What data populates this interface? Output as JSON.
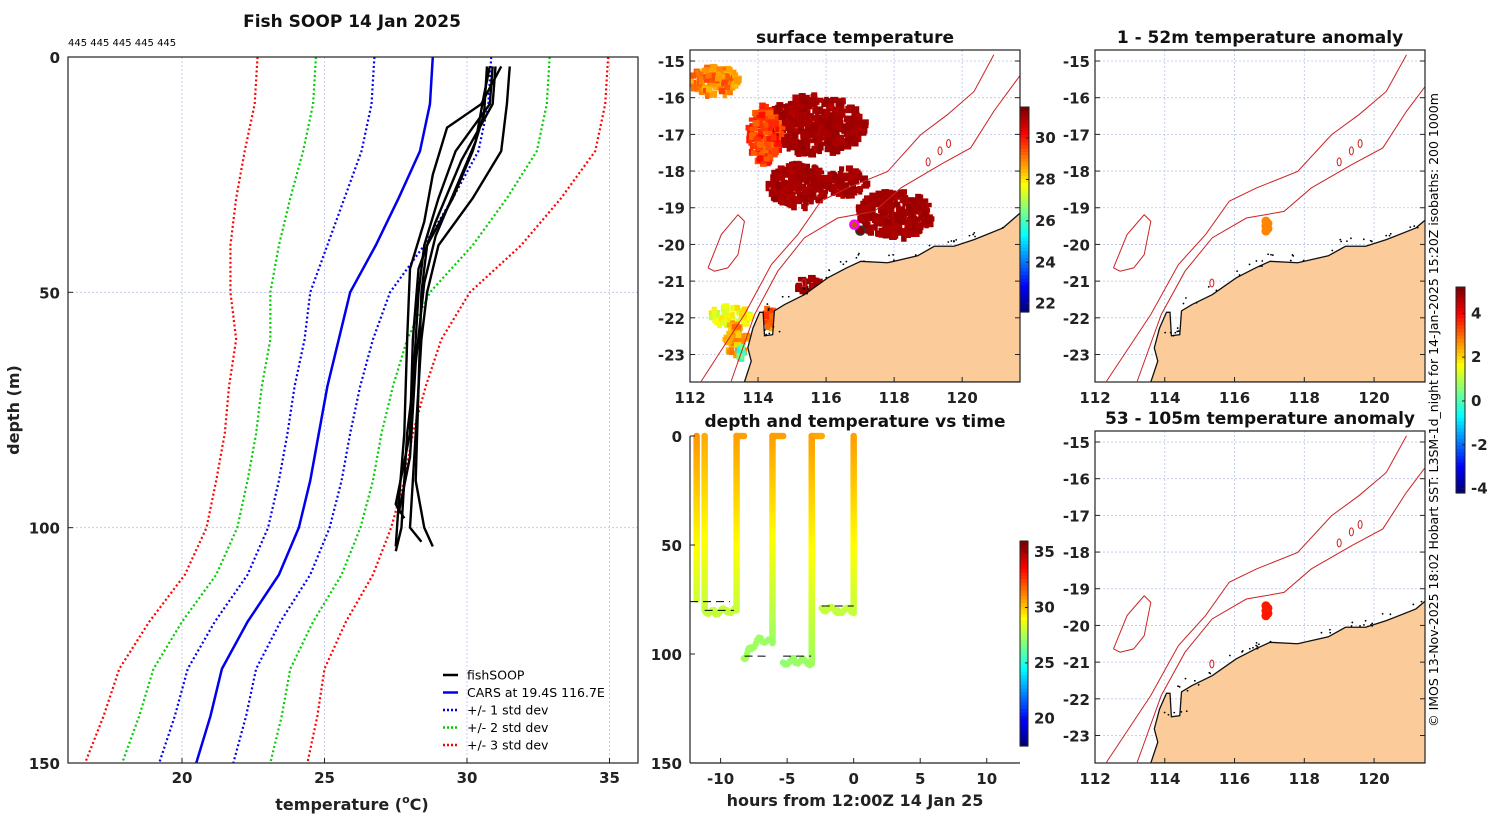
{
  "figure_title": "Fish SOOP 14 Jan 2025",
  "profile_counts": "445 445 445 445 445",
  "credit": "© IMOS 13-Nov-2025 18:02 Hobart SST: L3SM-1d_night for 14-Jan-2025 15:20Z isobaths: 200  1000m",
  "colors": {
    "land": "#fbcb9a",
    "grid": "#b8c4e8",
    "isobath": "#cc2222",
    "fish": "#000000",
    "cars": "#0000ee",
    "std1": "#0000ee",
    "std2": "#00cc00",
    "std3": "#ff0000",
    "marker": "#ff00ff"
  },
  "chart_data": [
    {
      "id": "profile",
      "type": "line",
      "title": "Fish SOOP 14 Jan 2025",
      "xlabel": "temperature (",
      "xlabel_sup": "o",
      "xlabel_unit": "C)",
      "ylabel": "depth (m)",
      "xlim": [
        16,
        36
      ],
      "ylim": [
        0,
        150
      ],
      "xticks": [
        "20",
        "25",
        "30",
        "35"
      ],
      "yticks": [
        "0",
        "50",
        "100",
        "150"
      ],
      "grid": true,
      "legend_position": "bottom-right",
      "legend": [
        "fishSOOP",
        "CARS at 19.4S 116.7E",
        "+/- 1 std dev",
        "+/- 2 std dev",
        "+/- 3 std dev"
      ],
      "cars": {
        "depth": [
          0,
          10,
          20,
          30,
          40,
          50,
          60,
          70,
          80,
          90,
          100,
          110,
          120,
          130,
          140,
          150
        ],
        "mean": [
          28.8,
          28.7,
          28.35,
          27.6,
          26.8,
          25.9,
          25.5,
          25.1,
          24.8,
          24.5,
          24.1,
          23.4,
          22.3,
          21.4,
          21.0,
          20.5
        ],
        "std": [
          2.05,
          2.05,
          2.05,
          1.9,
          1.7,
          1.4,
          1.2,
          1.15,
          1.1,
          1.1,
          1.08,
          1.1,
          1.15,
          1.2,
          1.25,
          1.3
        ]
      },
      "fish_profiles": [
        [
          [
            2,
            31.5
          ],
          [
            10,
            31.4
          ],
          [
            20,
            31.2
          ],
          [
            30,
            30.2
          ],
          [
            40,
            29.0
          ],
          [
            50,
            28.6
          ],
          [
            60,
            28.4
          ],
          [
            70,
            28.3
          ],
          [
            80,
            28.2
          ],
          [
            90,
            28.1
          ],
          [
            100,
            28.0
          ],
          [
            103,
            28.4
          ]
        ],
        [
          [
            2,
            30.9
          ],
          [
            10,
            30.8
          ],
          [
            20,
            29.6
          ],
          [
            30,
            29.0
          ],
          [
            40,
            28.5
          ],
          [
            50,
            28.3
          ],
          [
            60,
            28.2
          ],
          [
            70,
            28.1
          ],
          [
            80,
            27.9
          ],
          [
            90,
            27.8
          ],
          [
            100,
            27.7
          ],
          [
            105,
            27.5
          ]
        ],
        [
          [
            2,
            31.2
          ],
          [
            10,
            30.5
          ],
          [
            15,
            29.3
          ],
          [
            25,
            28.8
          ],
          [
            35,
            28.5
          ],
          [
            45,
            28.0
          ],
          [
            60,
            27.9
          ],
          [
            80,
            27.8
          ],
          [
            95,
            27.6
          ],
          [
            104,
            27.5
          ]
        ],
        [
          [
            2,
            30.7
          ],
          [
            12,
            30.6
          ],
          [
            20,
            30.2
          ],
          [
            30,
            29.5
          ],
          [
            40,
            28.6
          ],
          [
            50,
            28.4
          ],
          [
            70,
            28.3
          ],
          [
            90,
            28.2
          ],
          [
            100,
            28.5
          ],
          [
            104,
            28.8
          ]
        ],
        [
          [
            2,
            31.0
          ],
          [
            10,
            30.9
          ],
          [
            22,
            29.8
          ],
          [
            35,
            28.9
          ],
          [
            45,
            28.3
          ],
          [
            60,
            28.1
          ],
          [
            80,
            28.0
          ],
          [
            95,
            27.5
          ],
          [
            98,
            27.8
          ]
        ],
        [
          [
            2,
            30.8
          ],
          [
            8,
            30.6
          ],
          [
            18,
            30.3
          ],
          [
            28,
            29.6
          ],
          [
            38,
            28.9
          ],
          [
            48,
            28.5
          ],
          [
            65,
            28.2
          ],
          [
            85,
            28.0
          ],
          [
            97,
            27.6
          ]
        ]
      ]
    },
    {
      "id": "sst_map",
      "type": "heatmap",
      "title": "surface temperature",
      "xlim": [
        112,
        121.7
      ],
      "ylim": [
        -23.75,
        -14.7
      ],
      "xticks": [
        "112",
        "114",
        "116",
        "118",
        "120"
      ],
      "yticks": [
        "-15",
        "-16",
        "-17",
        "-18",
        "-19",
        "-20",
        "-21",
        "-22",
        "-23"
      ],
      "colorbar": {
        "range": [
          21.6,
          31.5
        ],
        "ticks": [
          "22",
          "24",
          "26",
          "28",
          "30"
        ]
      },
      "sst_patches": [
        {
          "lon": 115.66,
          "lat": -16.73,
          "rlon": 1.5,
          "rlat": 0.8,
          "temp": 31.3
        },
        {
          "lon": 118.0,
          "lat": -19.19,
          "rlon": 1.1,
          "rlat": 0.65,
          "temp": 31.3
        },
        {
          "lon": 115.2,
          "lat": -18.4,
          "rlon": 0.9,
          "rlat": 0.6,
          "temp": 31.3
        },
        {
          "lon": 116.6,
          "lat": -18.3,
          "rlon": 0.6,
          "rlat": 0.4,
          "temp": 31.3
        },
        {
          "lon": 112.72,
          "lat": -15.55,
          "rlon": 0.7,
          "rlat": 0.4,
          "temp": 29.6
        },
        {
          "lon": 114.2,
          "lat": -17.0,
          "rlon": 0.5,
          "rlat": 0.8,
          "temp": 30.3
        },
        {
          "lon": 113.2,
          "lat": -21.95,
          "rlon": 0.65,
          "rlat": 0.28,
          "temp": 28.2
        },
        {
          "lon": 113.3,
          "lat": -22.6,
          "rlon": 0.35,
          "rlat": 0.45,
          "temp": 29.3
        },
        {
          "lon": 113.55,
          "lat": -22.95,
          "rlon": 0.15,
          "rlat": 0.2,
          "temp": 26.5
        },
        {
          "lon": 114.35,
          "lat": -22.0,
          "rlon": 0.2,
          "rlat": 0.3,
          "temp": 29.8
        },
        {
          "lon": 115.5,
          "lat": -21.1,
          "rlon": 0.35,
          "rlat": 0.2,
          "temp": 31.3
        }
      ],
      "fish_location": {
        "lon": 116.83,
        "lat": -19.46
      }
    },
    {
      "id": "anom_shallow",
      "type": "heatmap",
      "title": "1 - 52m temperature anomaly",
      "xlim": [
        112,
        121.46
      ],
      "ylim": [
        -23.75,
        -14.7
      ],
      "xticks": [
        "112",
        "114",
        "116",
        "118",
        "120"
      ],
      "yticks": [
        "-15",
        "-16",
        "-17",
        "-18",
        "-19",
        "-20",
        "-21",
        "-22",
        "-23"
      ],
      "anomaly_points": [
        {
          "lon": 116.9,
          "lat": -19.5,
          "anomaly": 2.8
        }
      ]
    },
    {
      "id": "depth_time",
      "type": "scatter",
      "title": "depth and temperature vs time",
      "xlabel": "hours from 12:00Z 14 Jan 25",
      "xlim": [
        -12.3,
        12.5
      ],
      "ylim": [
        0,
        150
      ],
      "xticks": [
        "-10",
        "-5",
        "0",
        "5",
        "10"
      ],
      "yticks": [
        "0",
        "50",
        "100",
        "150"
      ],
      "colorbar": {
        "range": [
          17.5,
          36
        ],
        "ticks": [
          "20",
          "25",
          "30",
          "35"
        ]
      },
      "track": [
        [
          -11.8,
          0,
          31.0
        ],
        [
          -11.8,
          75,
          28.2
        ],
        [
          -11.2,
          0,
          30.6
        ],
        [
          -11.2,
          80,
          28.0
        ],
        [
          -10.5,
          81,
          28.0
        ],
        [
          -9.5,
          80,
          28.0
        ],
        [
          -8.8,
          80,
          28.0
        ],
        [
          -8.8,
          0,
          30.8
        ],
        [
          -8.25,
          0,
          30.8
        ],
        [
          -8.25,
          102,
          27.4
        ],
        [
          -7.7,
          97,
          27.3
        ],
        [
          -7.0,
          93,
          27.3
        ],
        [
          -6.1,
          95,
          27.2
        ],
        [
          -6.1,
          0,
          30.8
        ],
        [
          -5.3,
          0,
          30.8
        ],
        [
          -5.3,
          104,
          27.0
        ],
        [
          -4.5,
          103,
          27.2
        ],
        [
          -3.15,
          104,
          27.3
        ],
        [
          -3.15,
          0,
          30.8
        ],
        [
          -2.4,
          0,
          30.6
        ],
        [
          -2.4,
          79,
          28.0
        ],
        [
          -1.2,
          80,
          28.0
        ],
        [
          0,
          80,
          28.0
        ],
        [
          0,
          0,
          30.8
        ]
      ],
      "reference_depths": [
        [
          -12.3,
          -9.3,
          76
        ],
        [
          -11.2,
          -9.0,
          80
        ],
        [
          -8.2,
          -6.5,
          101
        ],
        [
          -5.3,
          -3.2,
          101
        ],
        [
          -2.4,
          0,
          78
        ]
      ]
    },
    {
      "id": "anom_deep",
      "type": "heatmap",
      "title": "53 - 105m temperature anomaly",
      "xlim": [
        112,
        121.46
      ],
      "ylim": [
        -23.75,
        -14.7
      ],
      "xticks": [
        "112",
        "114",
        "116",
        "118",
        "120"
      ],
      "yticks": [
        "-15",
        "-16",
        "-17",
        "-18",
        "-19",
        "-20",
        "-21",
        "-22",
        "-23"
      ],
      "colorbar": {
        "range": [
          -4.2,
          5.2
        ],
        "ticks": [
          "-4",
          "-2",
          "0",
          "2",
          "4"
        ]
      },
      "anomaly_points": [
        {
          "lon": 116.9,
          "lat": -19.6,
          "anomaly": 3.8
        }
      ]
    }
  ],
  "geography": {
    "coast": [
      [
        121.77,
        -19.09
      ],
      [
        121.2,
        -19.55
      ],
      [
        120.35,
        -19.87
      ],
      [
        119.76,
        -20.05
      ],
      [
        119.18,
        -20.05
      ],
      [
        118.69,
        -20.31
      ],
      [
        117.81,
        -20.5
      ],
      [
        117.02,
        -20.46
      ],
      [
        116.6,
        -20.64
      ],
      [
        116.05,
        -20.91
      ],
      [
        115.36,
        -21.37
      ],
      [
        114.78,
        -21.64
      ],
      [
        114.48,
        -21.81
      ],
      [
        114.43,
        -22.46
      ],
      [
        114.19,
        -22.49
      ],
      [
        114.15,
        -21.85
      ],
      [
        114.05,
        -21.85
      ],
      [
        113.85,
        -22.28
      ],
      [
        113.7,
        -22.82
      ],
      [
        113.8,
        -23.18
      ],
      [
        113.6,
        -23.75
      ],
      [
        121.8,
        -23.75
      ]
    ],
    "isobath_1000": [
      [
        112.33,
        -23.73
      ],
      [
        113.6,
        -21.91
      ],
      [
        114.39,
        -20.55
      ],
      [
        115.17,
        -19.73
      ],
      [
        115.85,
        -18.82
      ],
      [
        116.63,
        -18.46
      ],
      [
        117.81,
        -18.01
      ],
      [
        118.78,
        -17.01
      ],
      [
        119.57,
        -16.46
      ],
      [
        120.35,
        -15.83
      ],
      [
        120.93,
        -14.83
      ]
    ],
    "isobath_200": [
      [
        113.21,
        -23.73
      ],
      [
        113.9,
        -21.91
      ],
      [
        114.58,
        -20.73
      ],
      [
        115.36,
        -19.82
      ],
      [
        116.34,
        -19.28
      ],
      [
        117.42,
        -19.1
      ],
      [
        118.2,
        -18.46
      ],
      [
        119.37,
        -17.82
      ],
      [
        120.25,
        -17.37
      ],
      [
        120.93,
        -16.37
      ],
      [
        121.72,
        -15.37
      ]
    ],
    "shoal": [
      [
        112.53,
        -20.64
      ],
      [
        112.92,
        -19.73
      ],
      [
        113.41,
        -19.19
      ],
      [
        113.6,
        -19.37
      ],
      [
        113.41,
        -20.28
      ],
      [
        113.11,
        -20.64
      ],
      [
        112.72,
        -20.73
      ],
      [
        112.53,
        -20.64
      ]
    ],
    "small_shoals": [
      [
        119.0,
        -17.75
      ],
      [
        119.35,
        -17.45
      ],
      [
        119.6,
        -17.25
      ],
      [
        115.35,
        -21.05
      ]
    ]
  }
}
